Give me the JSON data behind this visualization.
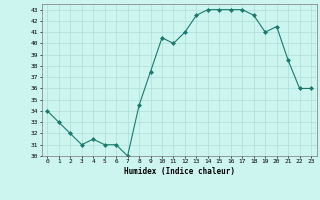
{
  "x": [
    0,
    1,
    2,
    3,
    4,
    5,
    6,
    7,
    8,
    9,
    10,
    11,
    12,
    13,
    14,
    15,
    16,
    17,
    18,
    19,
    20,
    21,
    22,
    23
  ],
  "y": [
    34,
    33,
    32,
    31,
    31.5,
    31,
    31,
    30,
    34.5,
    37.5,
    40.5,
    40,
    41,
    42.5,
    43,
    43,
    43,
    43,
    42.5,
    41,
    41.5,
    38.5,
    36,
    36
  ],
  "line_color": "#1a7a6e",
  "marker_color": "#1a7a6e",
  "bg_color": "#cdf5f0",
  "grid_color": "#aeddda",
  "xlabel": "Humidex (Indice chaleur)",
  "ylim": [
    30,
    43.5
  ],
  "xlim": [
    -0.5,
    23.5
  ],
  "yticks": [
    30,
    31,
    32,
    33,
    34,
    35,
    36,
    37,
    38,
    39,
    40,
    41,
    42,
    43
  ],
  "xticks": [
    0,
    1,
    2,
    3,
    4,
    5,
    6,
    7,
    8,
    9,
    10,
    11,
    12,
    13,
    14,
    15,
    16,
    17,
    18,
    19,
    20,
    21,
    22,
    23
  ]
}
